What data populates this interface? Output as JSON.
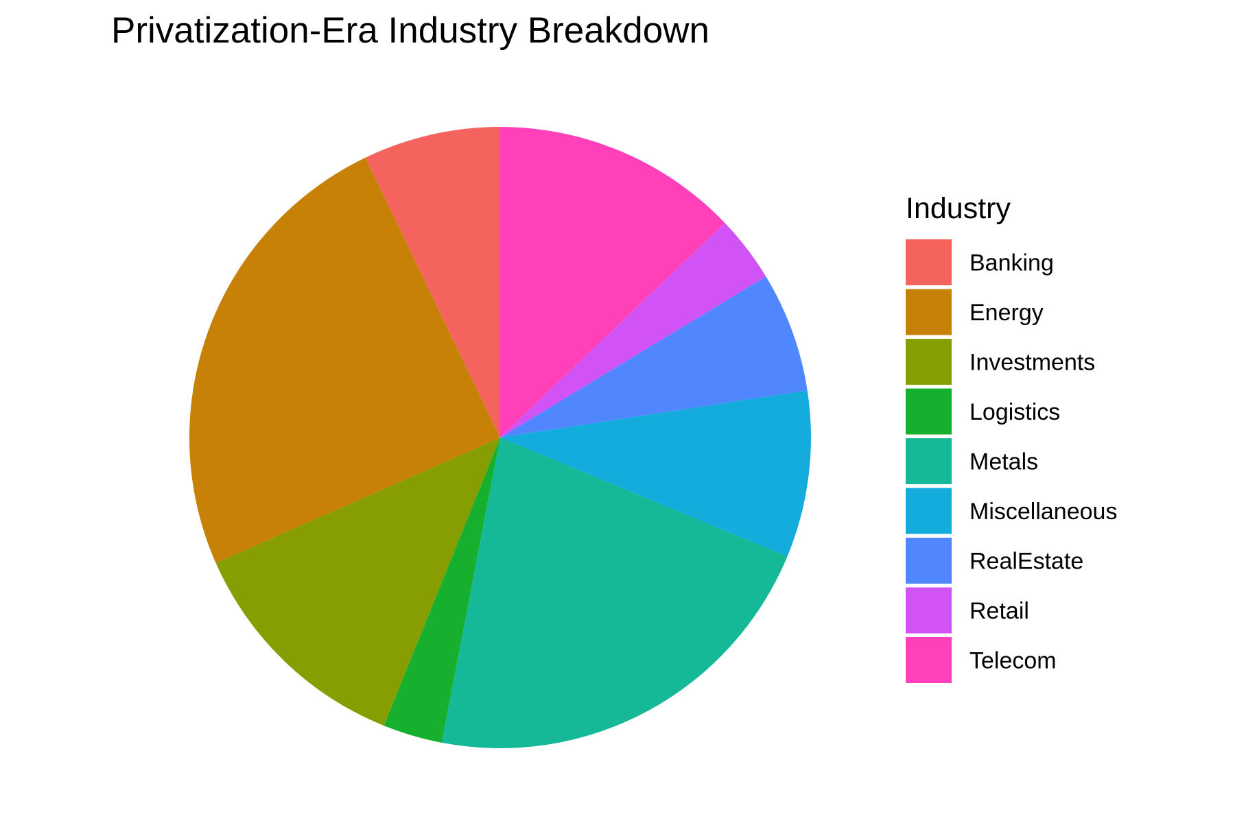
{
  "chart_data": {
    "type": "pie",
    "title": "Privatization-Era Industry Breakdown",
    "legend": {
      "title": "Industry",
      "placement": "right"
    },
    "start_angle_deg": 0,
    "direction": "clockwise",
    "slices": [
      {
        "label": "Telecom",
        "value": 17.5,
        "color": "#FF40B8"
      },
      {
        "label": "Retail",
        "value": 4.7,
        "color": "#D152F5"
      },
      {
        "label": "RealEstate",
        "value": 8.5,
        "color": "#5087FE"
      },
      {
        "label": "Miscellaneous",
        "value": 11.8,
        "color": "#14ACDD"
      },
      {
        "label": "Metals",
        "value": 29.6,
        "color": "#15B997"
      },
      {
        "label": "Logistics",
        "value": 4.2,
        "color": "#16AF2E"
      },
      {
        "label": "Investments",
        "value": 16.7,
        "color": "#879E03"
      },
      {
        "label": "Energy",
        "value": 33.3,
        "color": "#C78106"
      },
      {
        "label": "Banking",
        "value": 9.7,
        "color": "#F5635F"
      }
    ],
    "legend_order": [
      "Banking",
      "Energy",
      "Investments",
      "Logistics",
      "Metals",
      "Miscellaneous",
      "RealEstate",
      "Retail",
      "Telecom"
    ]
  }
}
